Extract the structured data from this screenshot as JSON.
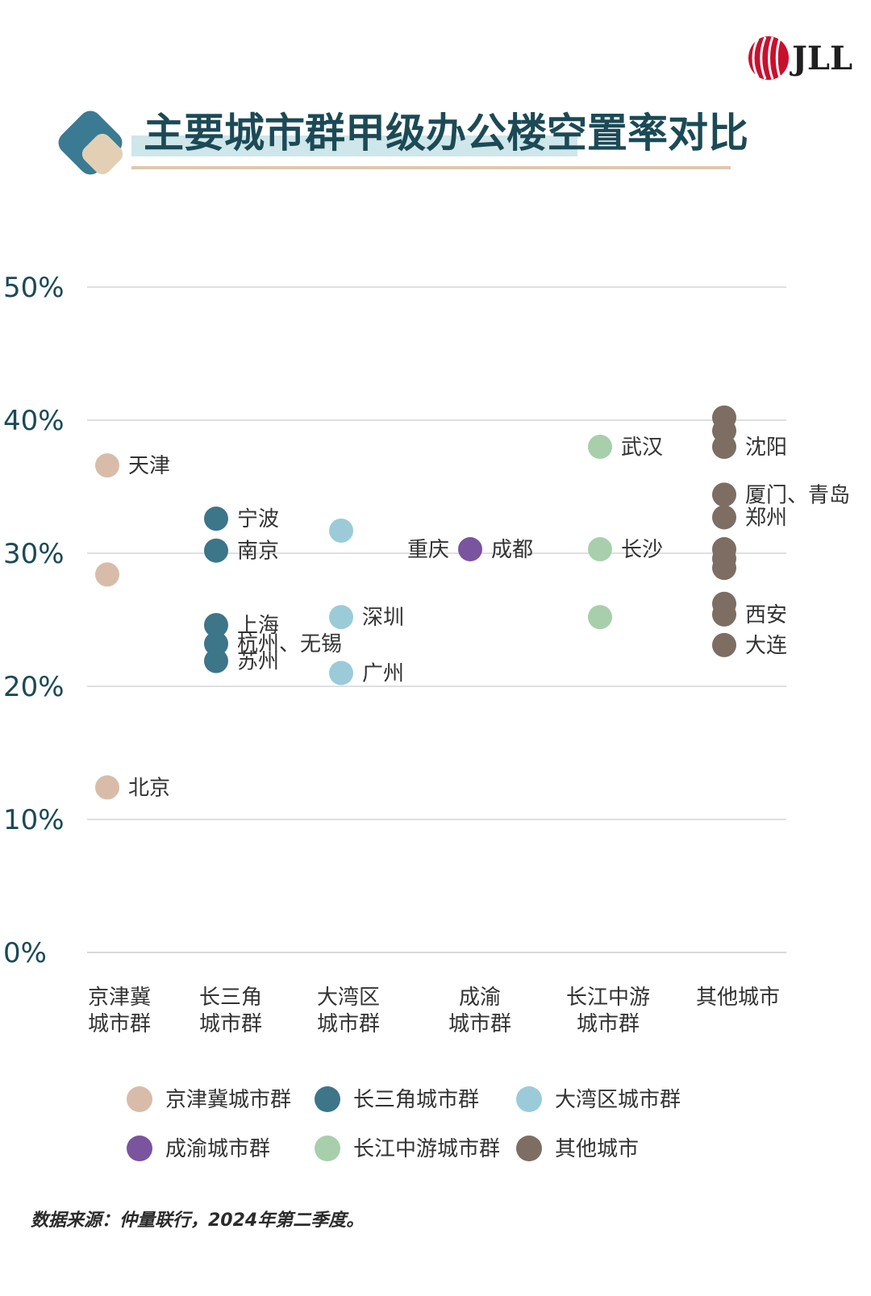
{
  "brand": {
    "logo_text": "JLL",
    "color": "#c8102e"
  },
  "title": "主要城市群甲级办公楼空置率对比",
  "source": "数据来源：仲量联行，2024年第二季度。",
  "colors": {
    "title": "#1b4a56",
    "axis_text": "#1b4a56",
    "label_text": "#333333",
    "grid": "#cccccc",
    "deco_dark": "#3a7a93",
    "deco_light": "#e3d0b4",
    "title_highlight": "#cfe6ea",
    "underline": "#ddc9ad"
  },
  "chart_data": {
    "type": "scatter",
    "title": "主要城市群甲级办公楼空置率对比",
    "ylim": [
      0,
      50
    ],
    "y_ticks": [
      {
        "value": 0,
        "label": "0%"
      },
      {
        "value": 10,
        "label": "10%"
      },
      {
        "value": 20,
        "label": "20%"
      },
      {
        "value": 30,
        "label": "30%"
      },
      {
        "value": 40,
        "label": "40%"
      },
      {
        "value": 50,
        "label": "50%"
      }
    ],
    "grid": true,
    "categories": [
      {
        "lines": [
          "京津冀",
          "城市群"
        ]
      },
      {
        "lines": [
          "长三角",
          "城市群"
        ]
      },
      {
        "lines": [
          "大湾区",
          "城市群"
        ]
      },
      {
        "lines": [
          "成渝",
          "城市群"
        ]
      },
      {
        "lines": [
          "长江中游",
          "城市群"
        ]
      },
      {
        "lines": [
          "其他城市"
        ]
      }
    ],
    "legend_position": "bottom",
    "series": [
      {
        "name": "京津冀城市群",
        "color": "#d8bca9",
        "points": [
          {
            "y": 36.6,
            "label": "天津"
          },
          {
            "y": 28.4,
            "label": ""
          },
          {
            "y": 12.4,
            "label": "北京"
          }
        ]
      },
      {
        "name": "长三角城市群",
        "color": "#3d7589",
        "points": [
          {
            "y": 32.6,
            "label": "宁波"
          },
          {
            "y": 30.2,
            "label": "南京"
          },
          {
            "y": 24.6,
            "label": "上海"
          },
          {
            "y": 23.2,
            "label": "杭州、无锡"
          },
          {
            "y": 21.9,
            "label": "苏州"
          }
        ]
      },
      {
        "name": "大湾区城市群",
        "color": "#9bcbd9",
        "points": [
          {
            "y": 31.7,
            "label": ""
          },
          {
            "y": 25.2,
            "label": "深圳"
          },
          {
            "y": 21.0,
            "label": "广州"
          }
        ]
      },
      {
        "name": "成渝城市群",
        "color": "#7a549f",
        "points": [
          {
            "y": 30.3,
            "label": "重庆",
            "label_left": true
          },
          {
            "y": 30.3,
            "label": "成都"
          }
        ]
      },
      {
        "name": "长江中游城市群",
        "color": "#a7cfab",
        "points": [
          {
            "y": 38.0,
            "label": "武汉"
          },
          {
            "y": 30.3,
            "label": "长沙"
          },
          {
            "y": 25.2,
            "label": ""
          }
        ]
      },
      {
        "name": "其他城市",
        "color": "#7d6d62",
        "points": [
          {
            "y": 40.2,
            "label": ""
          },
          {
            "y": 39.2,
            "label": ""
          },
          {
            "y": 38.0,
            "label": "沈阳"
          },
          {
            "y": 34.4,
            "label": "厦门、青岛"
          },
          {
            "y": 32.7,
            "label": "郑州"
          },
          {
            "y": 30.3,
            "label": ""
          },
          {
            "y": 29.6,
            "label": ""
          },
          {
            "y": 28.9,
            "label": ""
          },
          {
            "y": 26.2,
            "label": ""
          },
          {
            "y": 25.4,
            "label": "西安"
          },
          {
            "y": 23.1,
            "label": "大连"
          }
        ]
      }
    ]
  }
}
